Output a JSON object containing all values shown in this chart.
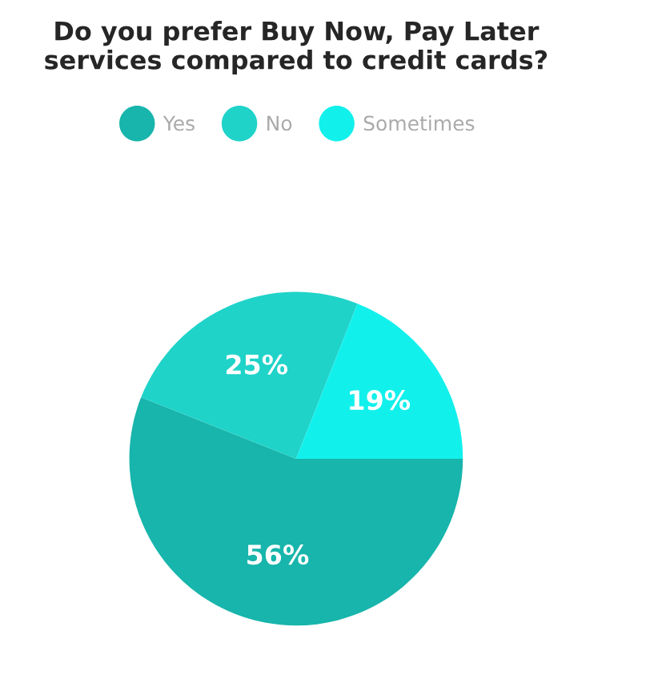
{
  "chart_data": {
    "type": "pie",
    "title": "Do you prefer Buy Now, Pay Later\nservices compared to credit cards?",
    "categories": [
      "Yes",
      "No",
      "Sometimes"
    ],
    "values": [
      56,
      25,
      19
    ],
    "colors": [
      "#17b5ab",
      "#1fd3c9",
      "#12f0ec"
    ],
    "value_labels": [
      "56%",
      "25%",
      "19%"
    ],
    "legend": "top"
  }
}
